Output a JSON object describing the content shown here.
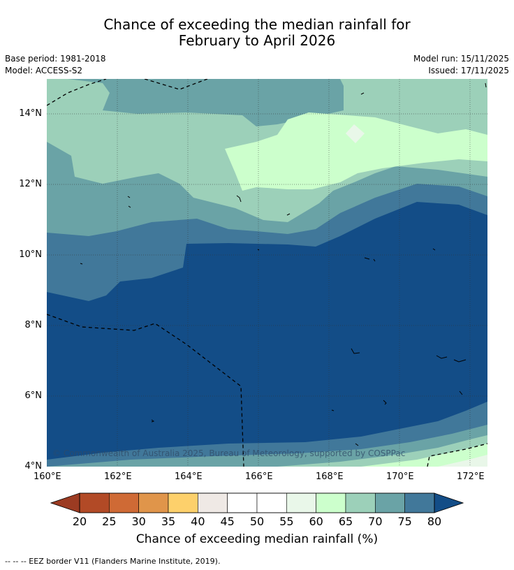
{
  "title_line1": "Chance of exceeding the median rainfall for",
  "title_line2": "February to April 2026",
  "base_period": "Base period: 1981-2018",
  "model": "Model: ACCESS-S2",
  "model_run": "Model run: 15/11/2025",
  "issued": "Issued: 17/11/2025",
  "copyright": "© Commonwealth of Australia 2025, Bureau of Meteorology, supported by COSPPac",
  "footnote": "--  --  -- EEZ border V11 (Flanders Marine Institute, 2019).",
  "x_ticks": [
    "160°E",
    "162°E",
    "164°E",
    "166°E",
    "168°E",
    "170°E",
    "172°E"
  ],
  "y_ticks": [
    "14°N",
    "12°N",
    "10°N",
    "8°N",
    "6°N",
    "4°N"
  ],
  "colorbar": {
    "title": "Chance of exceeding median rainfall (%)",
    "labels": [
      "20",
      "25",
      "30",
      "35",
      "40",
      "45",
      "50",
      "55",
      "60",
      "65",
      "70",
      "75",
      "80"
    ],
    "colors": [
      "#b24a26",
      "#cf6a35",
      "#e0954a",
      "#fdd06b",
      "#efe9e5",
      "#ffffff",
      "#ffffff",
      "#e9f7e9",
      "#ccffcc",
      "#9cd0b9",
      "#6aa3a6",
      "#41789a"
    ],
    "under_color": "#9c3b22",
    "over_color": "#134d87"
  },
  "chart_data": {
    "type": "map",
    "variable": "Chance of exceeding median rainfall (%)",
    "lon_range": [
      160,
      172.5
    ],
    "lat_range": [
      4,
      15
    ],
    "levels": [
      20,
      25,
      30,
      35,
      40,
      45,
      50,
      55,
      60,
      65,
      70,
      75,
      80
    ]
  }
}
